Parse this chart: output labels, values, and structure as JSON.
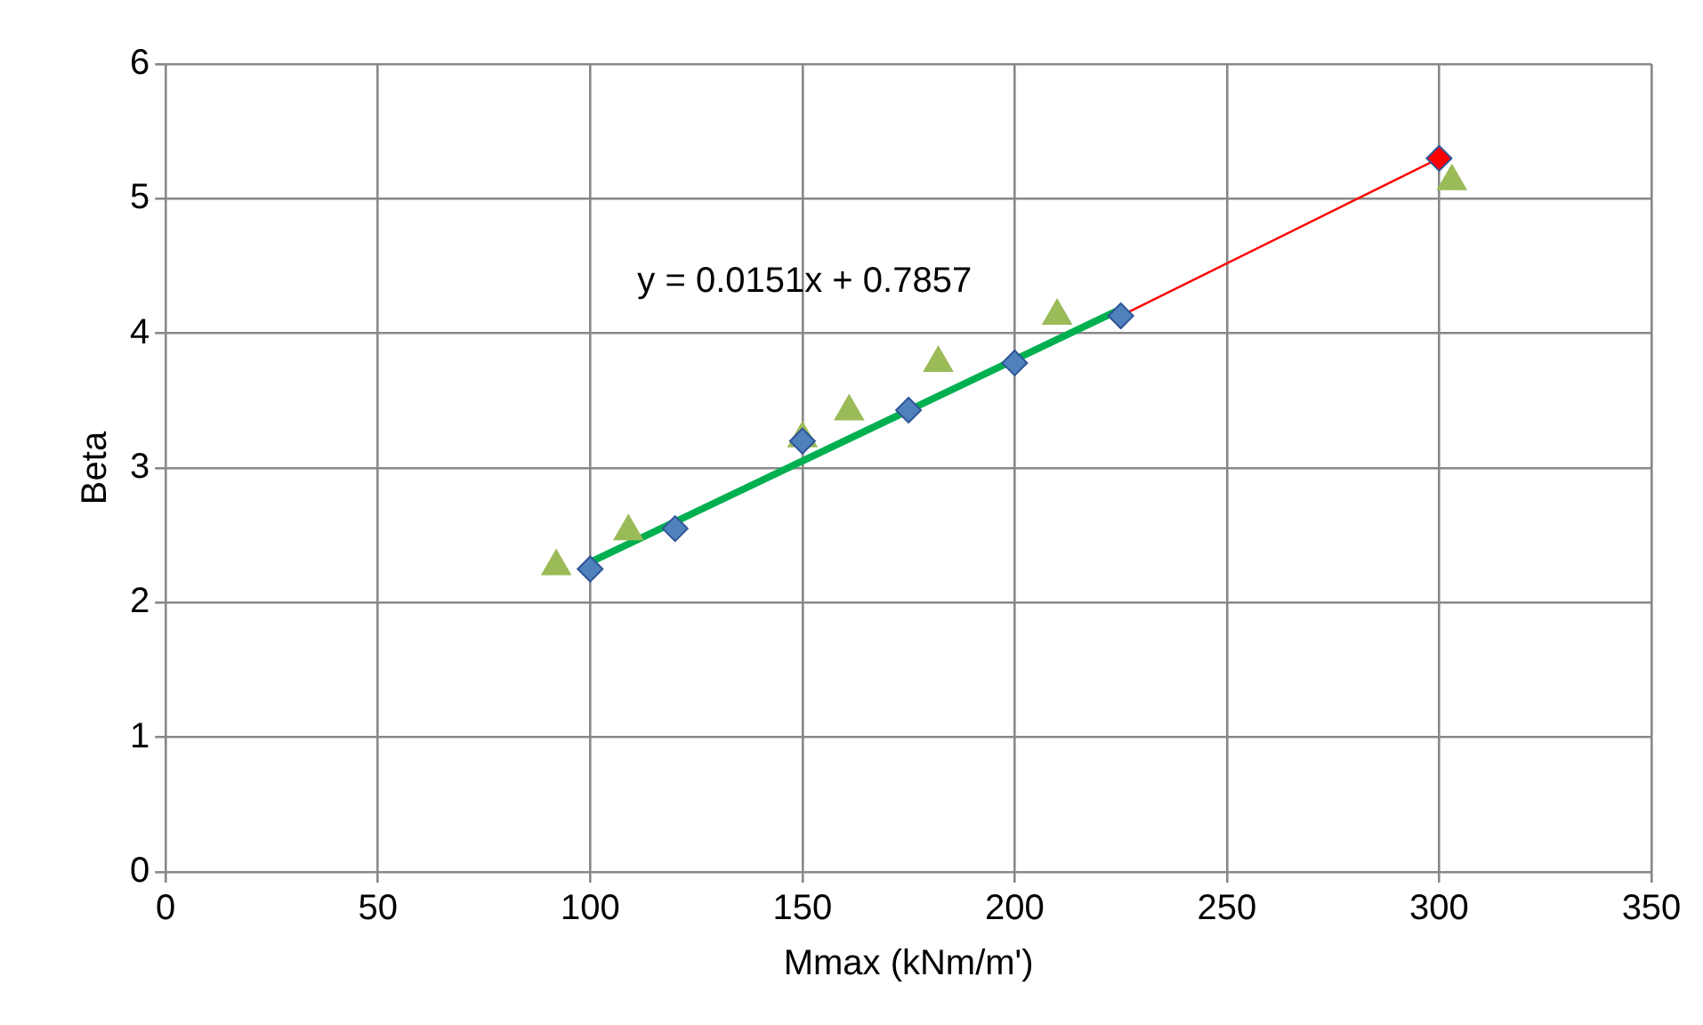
{
  "chart_data": {
    "type": "scatter",
    "xlabel": "Mmax (kNm/m')",
    "ylabel": "Beta",
    "xlim": [
      0,
      350
    ],
    "xticks": [
      0,
      50,
      100,
      150,
      200,
      250,
      300,
      350
    ],
    "ylim": [
      0,
      6
    ],
    "yticks": [
      0,
      1,
      2,
      3,
      4,
      5,
      6
    ],
    "grid": true,
    "legend": false,
    "series": [
      {
        "type": "scatter",
        "color": "#4f81bd",
        "marker": "diamond",
        "x": [
          100,
          120,
          150,
          175,
          200,
          225
        ],
        "values": [
          2.25,
          2.55,
          3.2,
          3.43,
          3.78,
          4.13
        ]
      },
      {
        "type": "scatter",
        "color": "#9bbb59",
        "marker": "triangle",
        "x": [
          92,
          109,
          150,
          161,
          182,
          210,
          303
        ],
        "values": [
          2.27,
          2.53,
          3.22,
          3.42,
          3.78,
          4.13,
          5.13
        ]
      },
      {
        "type": "line",
        "color": "#00b050",
        "marker": "none",
        "x": [
          100,
          225
        ],
        "values": [
          2.3,
          4.18
        ]
      },
      {
        "type": "line",
        "color": "#ff0000",
        "marker": "none",
        "x": [
          225,
          300
        ],
        "values": [
          4.13,
          5.3
        ]
      },
      {
        "type": "scatter",
        "color": "#ff0000",
        "marker": "diamond",
        "x": [
          300
        ],
        "values": [
          5.3
        ]
      }
    ],
    "annotations": [
      "y = 0.0151x + 0.7857"
    ]
  }
}
